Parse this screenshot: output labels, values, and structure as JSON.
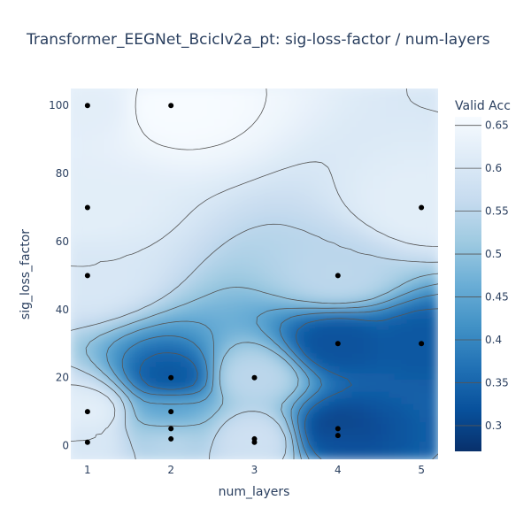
{
  "chart_data": {
    "type": "contour",
    "title": "Transformer_EEGNet_BcicIv2a_pt: sig-loss-factor / num-layers",
    "xlabel": "num_layers",
    "ylabel": "sig_loss_factor",
    "xlim": [
      0.8,
      5.2
    ],
    "ylim": [
      -4,
      105
    ],
    "xticks": [
      1,
      2,
      3,
      4,
      5
    ],
    "yticks": [
      0,
      20,
      40,
      60,
      80,
      100
    ],
    "colorbar": {
      "title": "Valid Acc",
      "range": [
        0.27,
        0.66
      ],
      "ticks": [
        0.3,
        0.35,
        0.4,
        0.45,
        0.5,
        0.55,
        0.6,
        0.65
      ],
      "tick_labels": [
        "0.3",
        "0.35",
        "0.4",
        "0.45",
        "0.5",
        "0.55",
        "0.6",
        "0.65"
      ],
      "colorscale": [
        "#08306b",
        "#08519c",
        "#2171b5",
        "#4292c6",
        "#6baed6",
        "#9ecae1",
        "#c6dbef",
        "#deebf7",
        "#f7fbff"
      ]
    },
    "points": [
      {
        "x": 1,
        "y": 100,
        "value": 0.62
      },
      {
        "x": 1,
        "y": 70,
        "value": 0.62
      },
      {
        "x": 1,
        "y": 50,
        "value": 0.6
      },
      {
        "x": 1,
        "y": 10,
        "value": 0.62
      },
      {
        "x": 1,
        "y": 1,
        "value": 0.6
      },
      {
        "x": 2,
        "y": 100,
        "value": 0.66
      },
      {
        "x": 2,
        "y": 20,
        "value": 0.33
      },
      {
        "x": 2,
        "y": 10,
        "value": 0.45
      },
      {
        "x": 2,
        "y": 5,
        "value": 0.5
      },
      {
        "x": 2,
        "y": 2,
        "value": 0.55
      },
      {
        "x": 3,
        "y": 20,
        "value": 0.55
      },
      {
        "x": 3,
        "y": 2,
        "value": 0.58
      },
      {
        "x": 3,
        "y": 1,
        "value": 0.58
      },
      {
        "x": 4,
        "y": 50,
        "value": 0.55
      },
      {
        "x": 4,
        "y": 30,
        "value": 0.32
      },
      {
        "x": 4,
        "y": 5,
        "value": 0.3
      },
      {
        "x": 4,
        "y": 3,
        "value": 0.32
      },
      {
        "x": 5,
        "y": 70,
        "value": 0.62
      },
      {
        "x": 5,
        "y": 30,
        "value": 0.33
      }
    ],
    "contour_levels": [
      0.3,
      0.35,
      0.4,
      0.45,
      0.5,
      0.55,
      0.6,
      0.65
    ],
    "grid": false
  }
}
